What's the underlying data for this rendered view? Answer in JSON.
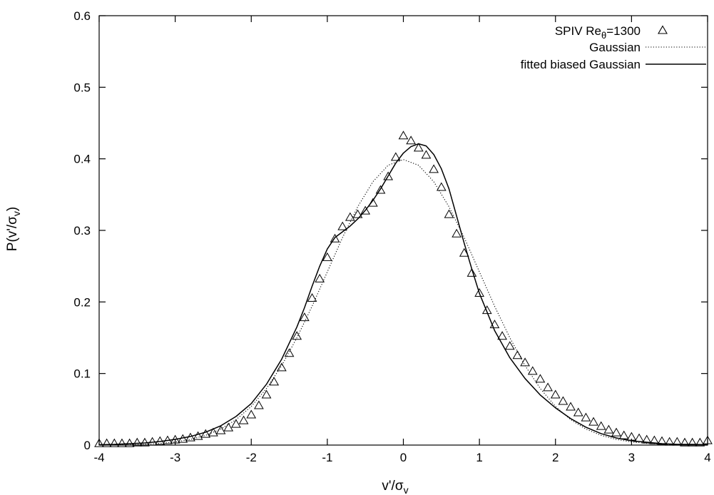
{
  "chart_data": {
    "type": "line",
    "title": "",
    "xlabel": "v'/σ",
    "xlabel_sub": "v",
    "ylabel": "P(v'/σ",
    "ylabel_sub": "v",
    "ylabel_close": ")",
    "xlim": [
      -4,
      4
    ],
    "ylim": [
      0,
      0.6
    ],
    "xticks": [
      -4,
      -3,
      -2,
      -1,
      0,
      1,
      2,
      3,
      4
    ],
    "yticks": [
      0,
      0.1,
      0.2,
      0.3,
      0.4,
      0.5,
      0.6
    ],
    "xtick_labels": [
      "-4",
      "-3",
      "-2",
      "-1",
      "0",
      "1",
      "2",
      "3",
      "4"
    ],
    "ytick_labels": [
      "0",
      "0.1",
      "0.2",
      "0.3",
      "0.4",
      "0.5",
      "0.6"
    ],
    "grid": false,
    "legend_position": "top-right",
    "series": [
      {
        "name": "SPIV Re",
        "name_sub": "θ",
        "name_suffix": "=1300",
        "style": "markers",
        "marker": "triangle-open",
        "x": [
          -4.0,
          -3.9,
          -3.8,
          -3.7,
          -3.6,
          -3.5,
          -3.4,
          -3.3,
          -3.2,
          -3.1,
          -3.0,
          -2.9,
          -2.8,
          -2.7,
          -2.6,
          -2.5,
          -2.4,
          -2.3,
          -2.2,
          -2.1,
          -2.0,
          -1.9,
          -1.8,
          -1.7,
          -1.6,
          -1.5,
          -1.4,
          -1.3,
          -1.2,
          -1.1,
          -1.0,
          -0.9,
          -0.8,
          -0.7,
          -0.6,
          -0.5,
          -0.4,
          -0.3,
          -0.2,
          -0.1,
          0.0,
          0.1,
          0.2,
          0.3,
          0.4,
          0.5,
          0.6,
          0.7,
          0.8,
          0.9,
          1.0,
          1.1,
          1.2,
          1.3,
          1.4,
          1.5,
          1.6,
          1.7,
          1.8,
          1.9,
          2.0,
          2.1,
          2.2,
          2.3,
          2.4,
          2.5,
          2.6,
          2.7,
          2.8,
          2.9,
          3.0,
          3.1,
          3.2,
          3.3,
          3.4,
          3.5,
          3.6,
          3.7,
          3.8,
          3.9,
          4.0
        ],
        "y": [
          0.002,
          0.002,
          0.002,
          0.002,
          0.002,
          0.003,
          0.003,
          0.004,
          0.005,
          0.006,
          0.007,
          0.008,
          0.01,
          0.012,
          0.015,
          0.017,
          0.02,
          0.024,
          0.029,
          0.034,
          0.042,
          0.055,
          0.07,
          0.088,
          0.108,
          0.128,
          0.152,
          0.178,
          0.205,
          0.232,
          0.262,
          0.288,
          0.305,
          0.318,
          0.322,
          0.327,
          0.338,
          0.356,
          0.375,
          0.402,
          0.432,
          0.425,
          0.415,
          0.405,
          0.385,
          0.36,
          0.322,
          0.295,
          0.268,
          0.24,
          0.212,
          0.188,
          0.168,
          0.152,
          0.138,
          0.125,
          0.115,
          0.103,
          0.092,
          0.08,
          0.07,
          0.061,
          0.053,
          0.045,
          0.038,
          0.032,
          0.026,
          0.021,
          0.017,
          0.013,
          0.011,
          0.009,
          0.007,
          0.006,
          0.005,
          0.004,
          0.004,
          0.003,
          0.003,
          0.003,
          0.006
        ]
      },
      {
        "name": "Gaussian",
        "style": "dotted",
        "x": [
          -4.0,
          -3.8,
          -3.6,
          -3.4,
          -3.2,
          -3.0,
          -2.8,
          -2.6,
          -2.4,
          -2.2,
          -2.0,
          -1.8,
          -1.6,
          -1.4,
          -1.2,
          -1.0,
          -0.8,
          -0.6,
          -0.4,
          -0.2,
          0.0,
          0.2,
          0.4,
          0.6,
          0.8,
          1.0,
          1.2,
          1.4,
          1.6,
          1.8,
          2.0,
          2.2,
          2.4,
          2.6,
          2.8,
          3.0,
          3.2,
          3.4,
          3.6,
          3.8,
          4.0
        ],
        "y": [
          0.0001,
          0.0003,
          0.0006,
          0.0012,
          0.0024,
          0.0044,
          0.0079,
          0.0136,
          0.0224,
          0.0355,
          0.054,
          0.079,
          0.111,
          0.15,
          0.194,
          0.242,
          0.29,
          0.333,
          0.368,
          0.391,
          0.399,
          0.391,
          0.368,
          0.333,
          0.29,
          0.242,
          0.194,
          0.15,
          0.111,
          0.079,
          0.054,
          0.0355,
          0.0224,
          0.0136,
          0.0079,
          0.0044,
          0.0024,
          0.0012,
          0.0006,
          0.0003,
          0.0001
        ]
      },
      {
        "name": "fitted biased Gaussian",
        "style": "solid",
        "x": [
          -4.0,
          -3.8,
          -3.6,
          -3.4,
          -3.2,
          -3.0,
          -2.8,
          -2.6,
          -2.4,
          -2.2,
          -2.0,
          -1.8,
          -1.6,
          -1.4,
          -1.3,
          -1.2,
          -1.1,
          -1.0,
          -0.9,
          -0.8,
          -0.7,
          -0.6,
          -0.5,
          -0.4,
          -0.3,
          -0.2,
          -0.1,
          0.0,
          0.1,
          0.2,
          0.3,
          0.4,
          0.5,
          0.6,
          0.7,
          0.8,
          0.9,
          1.0,
          1.2,
          1.4,
          1.6,
          1.8,
          2.0,
          2.2,
          2.4,
          2.6,
          2.8,
          3.0,
          3.2,
          3.4,
          3.6,
          3.8,
          4.0
        ],
        "y": [
          0.0005,
          0.001,
          0.002,
          0.003,
          0.005,
          0.008,
          0.012,
          0.018,
          0.027,
          0.04,
          0.058,
          0.085,
          0.12,
          0.165,
          0.192,
          0.222,
          0.25,
          0.274,
          0.29,
          0.298,
          0.306,
          0.316,
          0.328,
          0.342,
          0.358,
          0.376,
          0.394,
          0.408,
          0.417,
          0.421,
          0.418,
          0.406,
          0.386,
          0.358,
          0.32,
          0.282,
          0.246,
          0.212,
          0.16,
          0.122,
          0.093,
          0.07,
          0.052,
          0.037,
          0.025,
          0.016,
          0.01,
          0.006,
          0.004,
          0.002,
          0.001,
          0.001,
          0.0005
        ]
      }
    ]
  }
}
